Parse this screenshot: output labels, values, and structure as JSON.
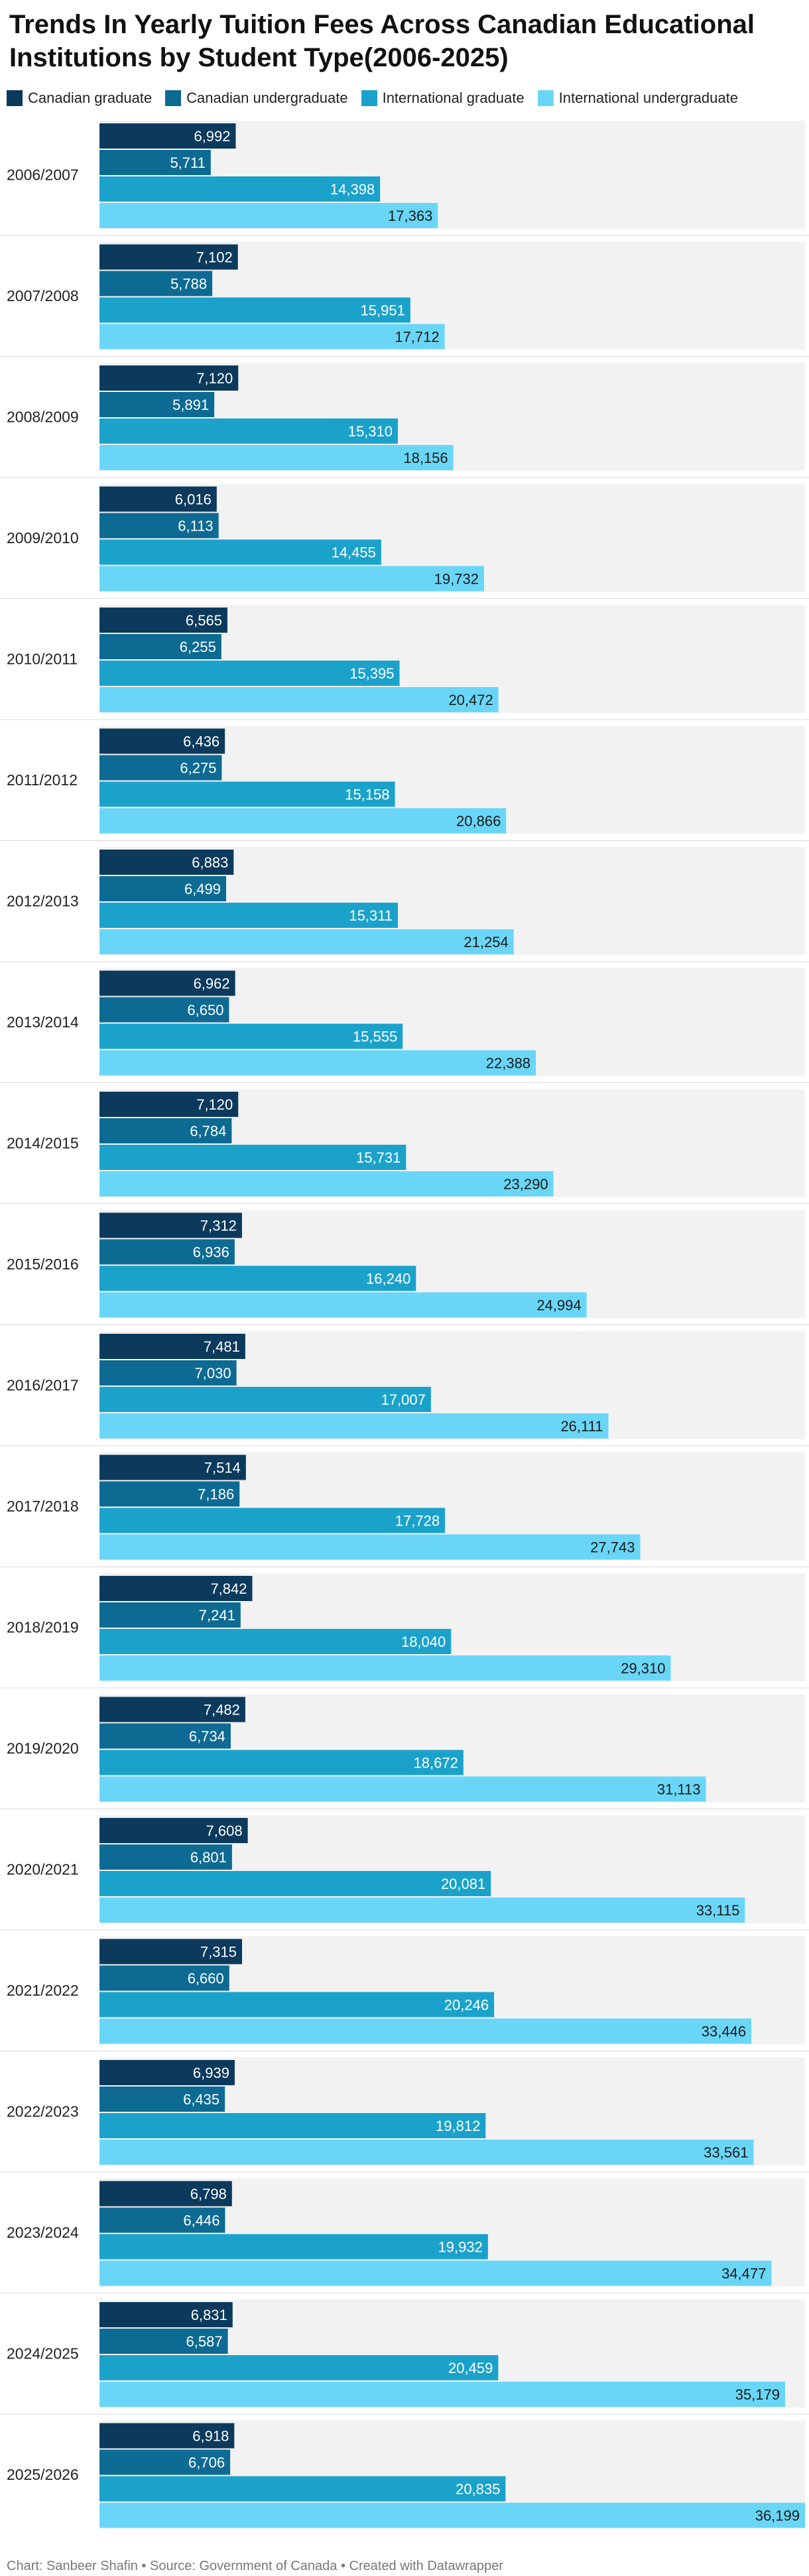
{
  "chart_data": {
    "type": "bar",
    "orientation": "horizontal",
    "title": "Trends In Yearly Tuition Fees Across Canadian Educational Institutions by Student Type(2006-2025)",
    "categories": [
      "2006/2007",
      "2007/2008",
      "2008/2009",
      "2009/2010",
      "2010/2011",
      "2011/2012",
      "2012/2013",
      "2013/2014",
      "2014/2015",
      "2015/2016",
      "2016/2017",
      "2017/2018",
      "2018/2019",
      "2019/2020",
      "2020/2021",
      "2021/2022",
      "2022/2023",
      "2023/2024",
      "2024/2025",
      "2025/2026"
    ],
    "series": [
      {
        "name": "Canadian graduate",
        "color": "#0b3a5c",
        "values": [
          6992,
          7102,
          7120,
          6016,
          6565,
          6436,
          6883,
          6962,
          7120,
          7312,
          7481,
          7514,
          7842,
          7482,
          7608,
          7315,
          6939,
          6798,
          6831,
          6918
        ]
      },
      {
        "name": "Canadian undergraduate",
        "color": "#0d6b93",
        "values": [
          5711,
          5788,
          5891,
          6113,
          6255,
          6275,
          6499,
          6650,
          6784,
          6936,
          7030,
          7186,
          7241,
          6734,
          6801,
          6660,
          6435,
          6446,
          6587,
          6706
        ]
      },
      {
        "name": "International graduate",
        "color": "#1ba2cb",
        "values": [
          14398,
          15951,
          15310,
          14455,
          15395,
          15158,
          15311,
          15555,
          15731,
          16240,
          17007,
          17728,
          18040,
          18672,
          20081,
          20246,
          19812,
          19932,
          20459,
          20835
        ]
      },
      {
        "name": "International undergraduate",
        "color": "#6ad6f7",
        "values": [
          17363,
          17712,
          18156,
          19732,
          20472,
          20866,
          21254,
          22388,
          23290,
          24994,
          26111,
          27743,
          29310,
          31113,
          33115,
          33446,
          33561,
          34477,
          35179,
          36199
        ]
      }
    ],
    "xlim": [
      0,
      36199
    ],
    "grid": false,
    "legend_position": "top-left",
    "band_color": "#f2f2f2",
    "footer": "Chart: Sanbeer Shafin • Source: Government of Canada • Created with Datawrapper"
  }
}
